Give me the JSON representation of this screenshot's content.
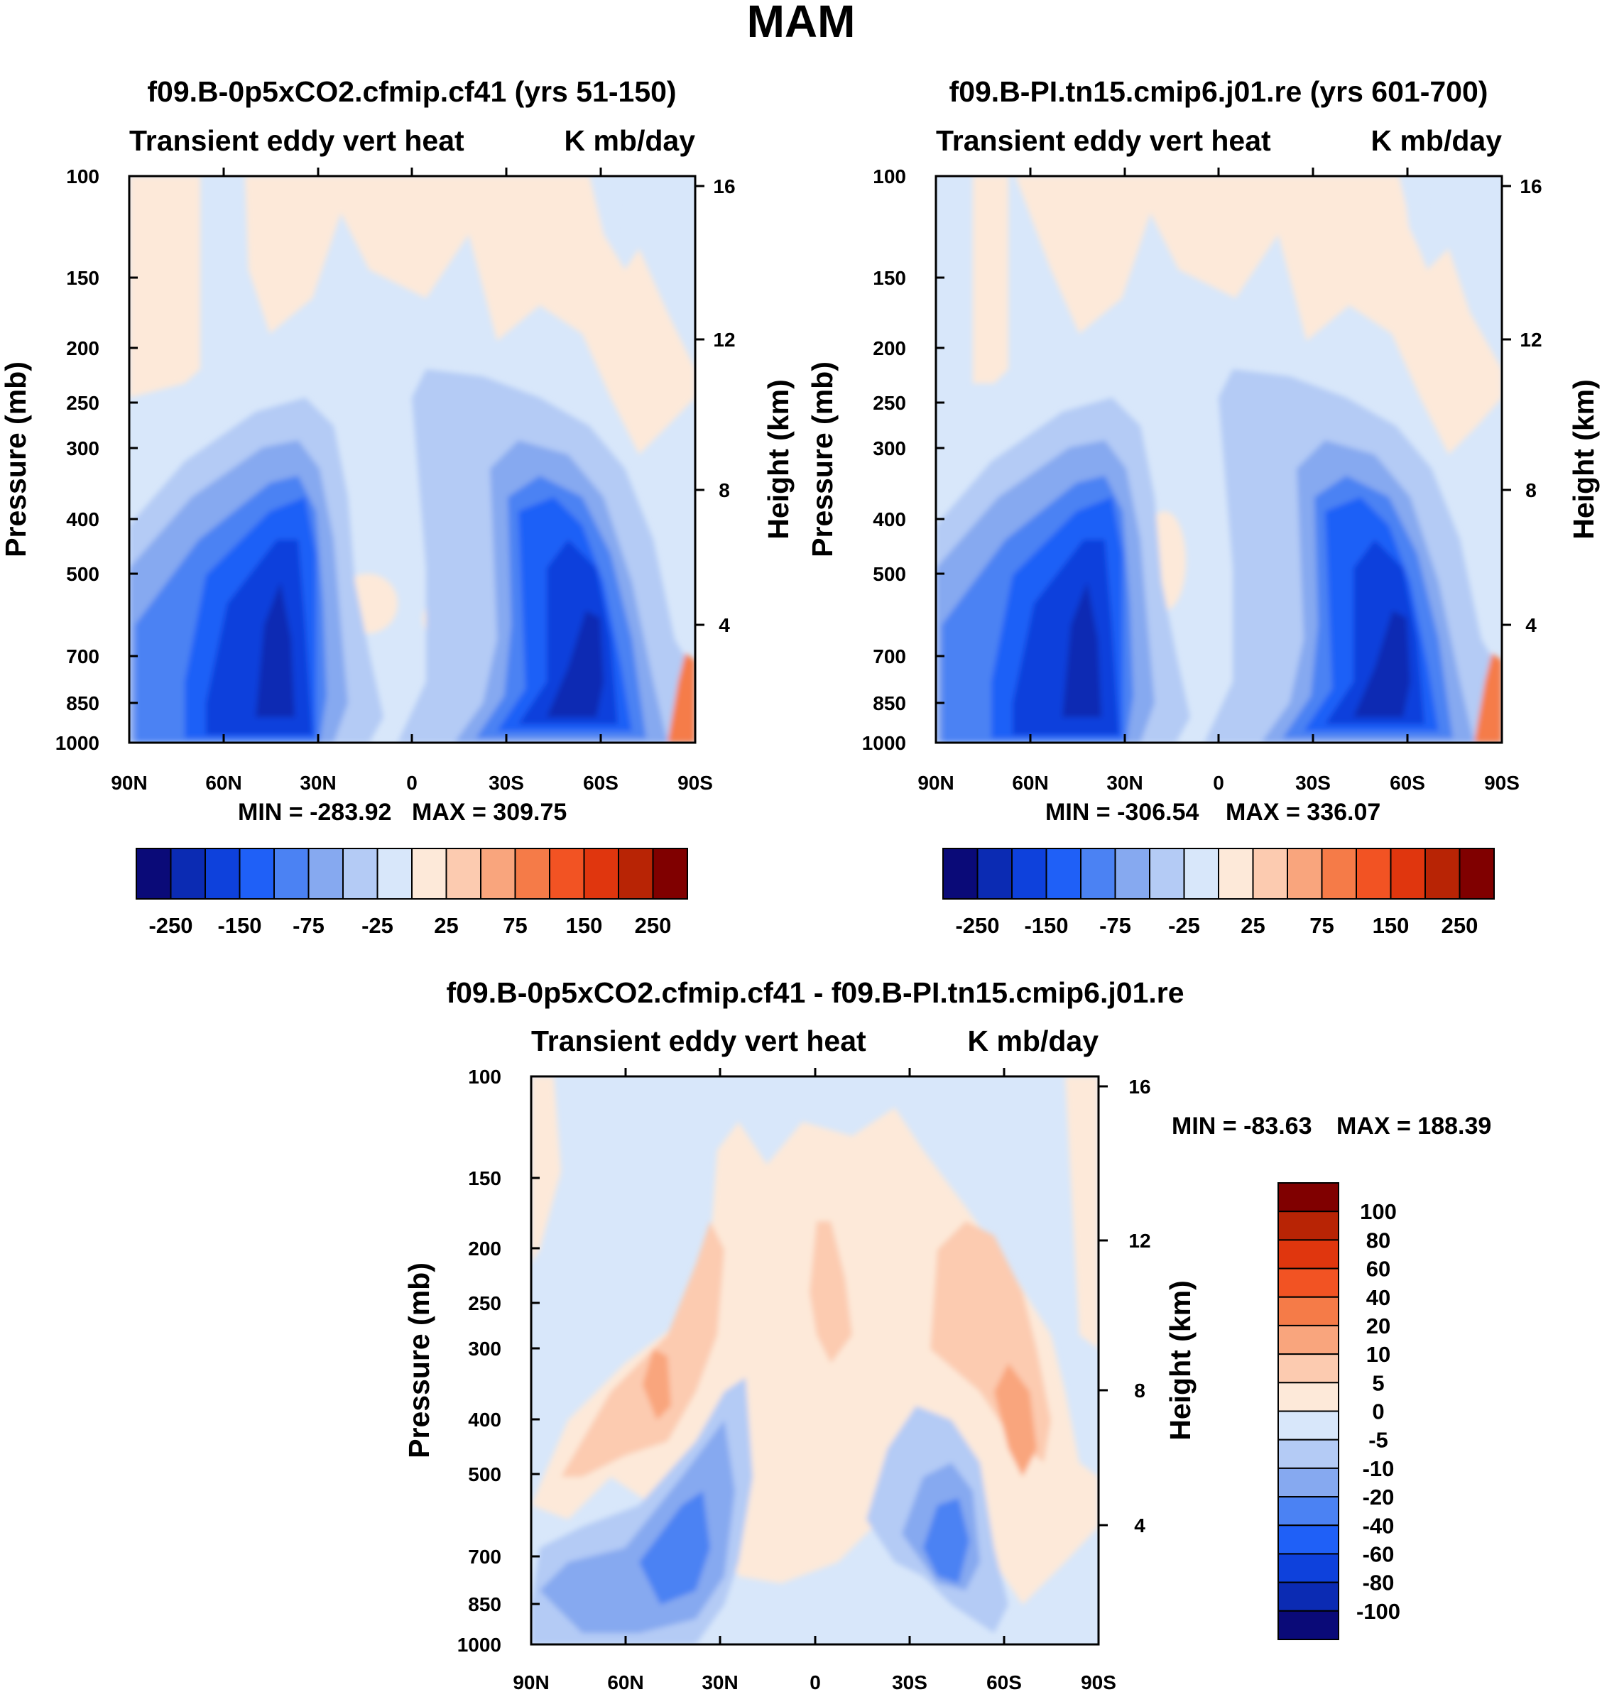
{
  "figure_title": "MAM",
  "chart_data": [
    {
      "type": "contour",
      "title": "f09.B-0p5xCO2.cfmip.cf41 (yrs 51-150)",
      "variable": "Transient eddy vert heat",
      "units": "K mb/day",
      "xlabel": "",
      "ylabel": "Pressure (mb)",
      "y2label": "Height (km)",
      "x_ticks": [
        "90N",
        "60N",
        "30N",
        "0",
        "30S",
        "60S",
        "90S"
      ],
      "y_ticks": [
        "100",
        "150",
        "200",
        "250",
        "300",
        "400",
        "500",
        "700",
        "850",
        "1000"
      ],
      "y2_ticks": [
        "16",
        "12",
        "8",
        "4"
      ],
      "min": "MIN = -283.92",
      "max": "MAX = 309.75",
      "colorbar_labels": [
        "-250",
        "-150",
        "-75",
        "-25",
        "25",
        "75",
        "150",
        "250"
      ]
    },
    {
      "type": "contour",
      "title": "f09.B-PI.tn15.cmip6.j01.re (yrs 601-700)",
      "variable": "Transient eddy vert heat",
      "units": "K mb/day",
      "xlabel": "",
      "ylabel": "Pressure (mb)",
      "y2label": "Height (km)",
      "x_ticks": [
        "90N",
        "60N",
        "30N",
        "0",
        "30S",
        "60S",
        "90S"
      ],
      "y_ticks": [
        "100",
        "150",
        "200",
        "250",
        "300",
        "400",
        "500",
        "700",
        "850",
        "1000"
      ],
      "y2_ticks": [
        "16",
        "12",
        "8",
        "4"
      ],
      "min": "MIN = -306.54",
      "max": "MAX = 336.07",
      "colorbar_labels": [
        "-250",
        "-150",
        "-75",
        "-25",
        "25",
        "75",
        "150",
        "250"
      ]
    },
    {
      "type": "contour",
      "title": "f09.B-0p5xCO2.cfmip.cf41 - f09.B-PI.tn15.cmip6.j01.re",
      "variable": "Transient eddy vert heat",
      "units": "K mb/day",
      "xlabel": "",
      "ylabel": "Pressure (mb)",
      "y2label": "Height (km)",
      "x_ticks": [
        "90N",
        "60N",
        "30N",
        "0",
        "30S",
        "60S",
        "90S"
      ],
      "y_ticks": [
        "100",
        "150",
        "200",
        "250",
        "300",
        "400",
        "500",
        "700",
        "850",
        "1000"
      ],
      "y2_ticks": [
        "16",
        "12",
        "8",
        "4"
      ],
      "min": "MIN = -83.63",
      "max": "MAX = 188.39",
      "colorbar_labels": [
        "100",
        "80",
        "60",
        "40",
        "20",
        "10",
        "5",
        "0",
        "-5",
        "-10",
        "-20",
        "-40",
        "-60",
        "-80",
        "-100"
      ]
    }
  ],
  "colors": {
    "scale": [
      "#0a0a78",
      "#0b2bb3",
      "#0e41dc",
      "#1f60f7",
      "#4b82f3",
      "#86a9f0",
      "#b4cbf5",
      "#d8e7fa",
      "#fde9d9",
      "#fccbb0",
      "#f9a57d",
      "#f57b48",
      "#f25323",
      "#e0360e",
      "#b82405",
      "#800000"
    ],
    "diff_scale": [
      "#0a0a78",
      "#0b2bb3",
      "#0e41dc",
      "#1f60f7",
      "#4b82f3",
      "#86a9f0",
      "#b4cbf5",
      "#d8e7fa",
      "#fde9d9",
      "#fccbb0",
      "#f9a57d",
      "#f57b48",
      "#f25323",
      "#e0360e",
      "#b82405",
      "#800000"
    ]
  }
}
